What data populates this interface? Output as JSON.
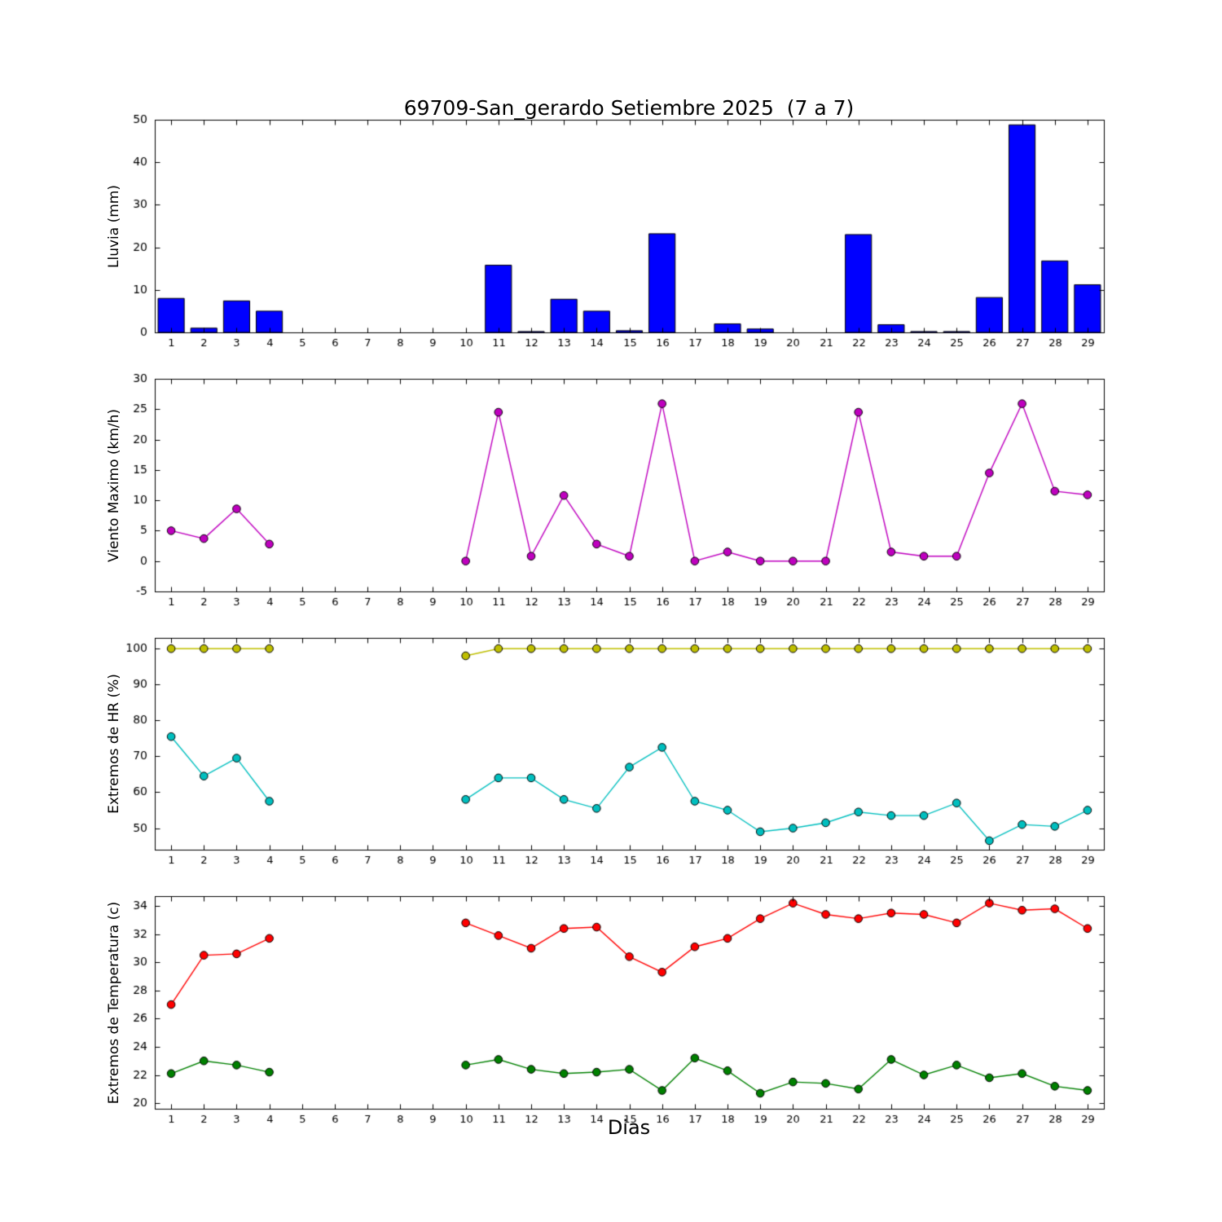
{
  "title": "69709-San_gerardo Setiembre 2025  (7 a 7)",
  "xlabel": "Dias",
  "colors": {
    "rain": "#0000ff",
    "wind": "#bf00bf",
    "hr_max": "#bfbf00",
    "hr_min": "#00bfbf",
    "temp_max": "#ff0000",
    "temp_min": "#008000",
    "axes": "#000000",
    "background": "#ffffff"
  },
  "chart_data": [
    {
      "type": "bar",
      "name": "lluvia",
      "ylabel": "Lluvia (mm)",
      "color": "#0000ff",
      "categories": [
        1,
        2,
        3,
        4,
        5,
        6,
        7,
        8,
        9,
        10,
        11,
        12,
        13,
        14,
        15,
        16,
        17,
        18,
        19,
        20,
        21,
        22,
        23,
        24,
        25,
        26,
        27,
        28,
        29
      ],
      "values": [
        8,
        1,
        7.4,
        5,
        0,
        0,
        0,
        0,
        0,
        0,
        15.8,
        0.2,
        7.8,
        5,
        0.4,
        23.2,
        0,
        2,
        0.8,
        0,
        0,
        23,
        1.8,
        0.2,
        0.2,
        8.2,
        48.8,
        16.8,
        11.2
      ],
      "xlim": [
        0.5,
        29.5
      ],
      "ylim": [
        0,
        50
      ],
      "yticks": [
        0,
        10,
        20,
        30,
        40,
        50
      ],
      "grid": false
    },
    {
      "type": "line",
      "name": "viento-maximo",
      "ylabel": "Viento Maximo (km/h)",
      "categories": [
        1,
        2,
        3,
        4,
        5,
        6,
        7,
        8,
        9,
        10,
        11,
        12,
        13,
        14,
        15,
        16,
        17,
        18,
        19,
        20,
        21,
        22,
        23,
        24,
        25,
        26,
        27,
        28,
        29
      ],
      "xlim": [
        0.5,
        29.5
      ],
      "ylim": [
        -5,
        30
      ],
      "yticks": [
        -5,
        0,
        5,
        10,
        15,
        20,
        25,
        30
      ],
      "grid": false,
      "series": [
        {
          "name": "viento-maximo",
          "color": "#bf00bf",
          "x": [
            1,
            2,
            3,
            4,
            10,
            11,
            12,
            13,
            14,
            15,
            16,
            17,
            18,
            19,
            20,
            21,
            22,
            23,
            24,
            25,
            26,
            27,
            28,
            29
          ],
          "values": [
            5.0,
            3.7,
            8.6,
            2.8,
            0.0,
            24.5,
            0.8,
            10.8,
            2.8,
            0.8,
            25.9,
            0.0,
            1.5,
            0.0,
            0.0,
            0.0,
            24.5,
            1.5,
            0.8,
            0.8,
            14.5,
            25.9,
            11.5,
            10.9
          ]
        }
      ]
    },
    {
      "type": "line",
      "name": "extremos-hr",
      "ylabel": "Extremos de HR (%)",
      "categories": [
        1,
        2,
        3,
        4,
        5,
        6,
        7,
        8,
        9,
        10,
        11,
        12,
        13,
        14,
        15,
        16,
        17,
        18,
        19,
        20,
        21,
        22,
        23,
        24,
        25,
        26,
        27,
        28,
        29
      ],
      "xlim": [
        0.5,
        29.5
      ],
      "ylim": [
        44,
        103
      ],
      "yticks": [
        50,
        60,
        70,
        80,
        90,
        100
      ],
      "grid": false,
      "series": [
        {
          "name": "hr-maxima",
          "color": "#bfbf00",
          "x": [
            1,
            2,
            3,
            4,
            10,
            11,
            12,
            13,
            14,
            15,
            16,
            17,
            18,
            19,
            20,
            21,
            22,
            23,
            24,
            25,
            26,
            27,
            28,
            29
          ],
          "values": [
            100,
            100,
            100,
            100,
            98,
            100,
            100,
            100,
            100,
            100,
            100,
            100,
            100,
            100,
            100,
            100,
            100,
            100,
            100,
            100,
            100,
            100,
            100,
            100
          ]
        },
        {
          "name": "hr-minima",
          "color": "#00bfbf",
          "x": [
            1,
            2,
            3,
            4,
            10,
            11,
            12,
            13,
            14,
            15,
            16,
            17,
            18,
            19,
            20,
            21,
            22,
            23,
            24,
            25,
            26,
            27,
            28,
            29
          ],
          "values": [
            75.5,
            64.5,
            69.5,
            57.5,
            58,
            64,
            64,
            58,
            55.5,
            67,
            72.5,
            57.5,
            55,
            49,
            50,
            51.5,
            54.5,
            53.5,
            53.5,
            57,
            46.5,
            51,
            50.5,
            55
          ]
        }
      ]
    },
    {
      "type": "line",
      "name": "extremos-temperatura",
      "ylabel": "Extremos de Temperatura (c)",
      "categories": [
        1,
        2,
        3,
        4,
        5,
        6,
        7,
        8,
        9,
        10,
        11,
        12,
        13,
        14,
        15,
        16,
        17,
        18,
        19,
        20,
        21,
        22,
        23,
        24,
        25,
        26,
        27,
        28,
        29
      ],
      "xlim": [
        0.5,
        29.5
      ],
      "ylim": [
        19.6,
        34.7
      ],
      "yticks": [
        20,
        22,
        24,
        26,
        28,
        30,
        32,
        34
      ],
      "grid": false,
      "series": [
        {
          "name": "temperatura-maxima",
          "color": "#ff0000",
          "x": [
            1,
            2,
            3,
            4,
            10,
            11,
            12,
            13,
            14,
            15,
            16,
            17,
            18,
            19,
            20,
            21,
            22,
            23,
            24,
            25,
            26,
            27,
            28,
            29
          ],
          "values": [
            27.0,
            30.5,
            30.6,
            31.7,
            32.8,
            31.9,
            31.0,
            32.4,
            32.5,
            30.4,
            29.3,
            31.1,
            31.7,
            33.1,
            34.2,
            33.4,
            33.1,
            33.5,
            33.4,
            32.8,
            34.2,
            33.7,
            33.8,
            32.4
          ]
        },
        {
          "name": "temperatura-minima",
          "color": "#008000",
          "x": [
            1,
            2,
            3,
            4,
            10,
            11,
            12,
            13,
            14,
            15,
            16,
            17,
            18,
            19,
            20,
            21,
            22,
            23,
            24,
            25,
            26,
            27,
            28,
            29
          ],
          "values": [
            22.1,
            23.0,
            22.7,
            22.2,
            22.7,
            23.1,
            22.4,
            22.1,
            22.2,
            22.4,
            20.9,
            23.2,
            22.3,
            20.7,
            21.5,
            21.4,
            21.0,
            23.1,
            22.0,
            22.7,
            21.8,
            22.1,
            21.2,
            20.9
          ]
        }
      ]
    }
  ]
}
